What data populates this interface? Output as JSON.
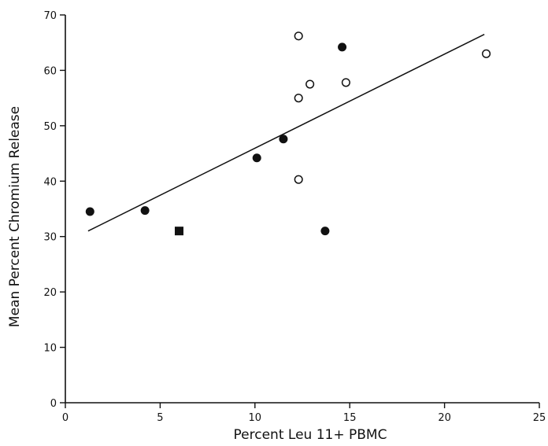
{
  "chart_data": {
    "type": "scatter",
    "title": "",
    "xlabel": "Percent Leu 11+ PBMC",
    "ylabel": "Mean Percent Chromium Release",
    "xlim": [
      0,
      25
    ],
    "ylim": [
      0,
      70
    ],
    "xticks": [
      0,
      5,
      10,
      15,
      20,
      25
    ],
    "yticks": [
      0,
      10,
      20,
      30,
      40,
      50,
      60,
      70
    ],
    "grid": false,
    "series": [
      {
        "marker": "filled-circle",
        "points": [
          {
            "x": 1.3,
            "y": 34.5
          },
          {
            "x": 4.2,
            "y": 34.7
          },
          {
            "x": 10.1,
            "y": 44.2
          },
          {
            "x": 11.5,
            "y": 47.6
          },
          {
            "x": 13.7,
            "y": 31.0
          },
          {
            "x": 14.6,
            "y": 64.2
          }
        ]
      },
      {
        "marker": "open-circle",
        "points": [
          {
            "x": 12.3,
            "y": 66.2
          },
          {
            "x": 12.3,
            "y": 55.0
          },
          {
            "x": 12.9,
            "y": 57.5
          },
          {
            "x": 14.8,
            "y": 57.8
          },
          {
            "x": 12.3,
            "y": 40.3
          },
          {
            "x": 22.2,
            "y": 63.0
          }
        ]
      },
      {
        "marker": "filled-square",
        "points": [
          {
            "x": 6.0,
            "y": 31.0
          }
        ]
      }
    ],
    "regression_line": {
      "x": [
        1.2,
        22.1
      ],
      "y": [
        31.0,
        66.5
      ]
    }
  }
}
